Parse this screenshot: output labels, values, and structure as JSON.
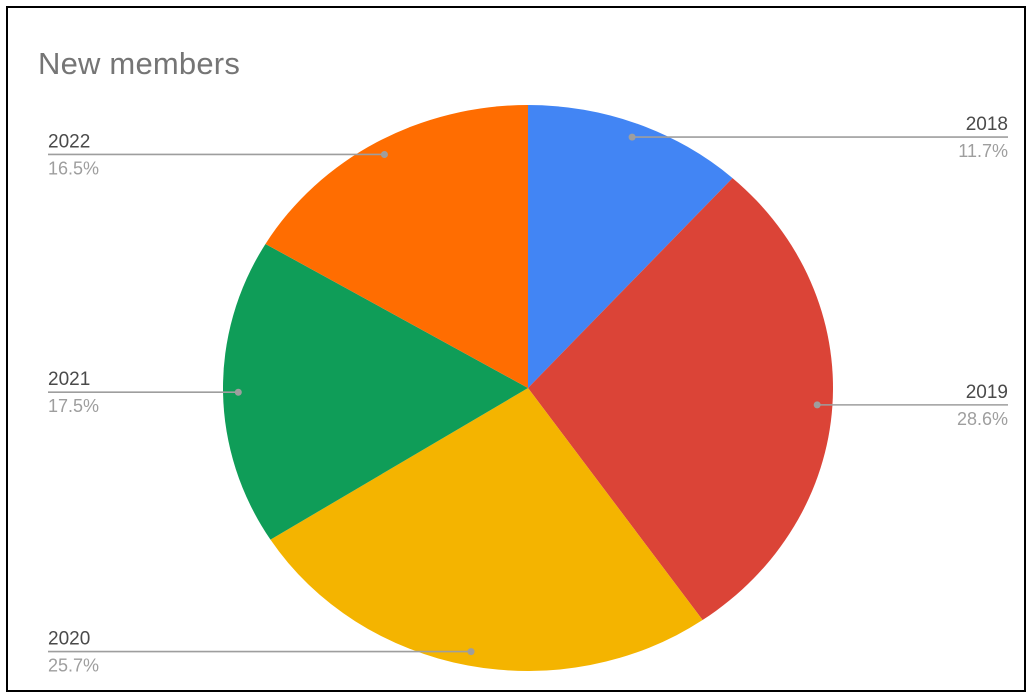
{
  "chart_data": {
    "type": "pie",
    "title": "New members",
    "slices": [
      {
        "label": "2018",
        "percent_label": "11.7%",
        "value": 11.7,
        "color": "#4285f4",
        "side": "right"
      },
      {
        "label": "2019",
        "percent_label": "28.6%",
        "value": 28.6,
        "color": "#db4437",
        "side": "right"
      },
      {
        "label": "2020",
        "percent_label": "25.7%",
        "value": 25.7,
        "color": "#f4b400",
        "side": "left"
      },
      {
        "label": "2021",
        "percent_label": "17.5%",
        "value": 17.5,
        "color": "#0f9d58",
        "side": "left"
      },
      {
        "label": "2022",
        "percent_label": "16.5%",
        "value": 16.5,
        "color": "#ff6d01",
        "side": "left"
      }
    ],
    "start_angle": "12 o'clock",
    "direction": "clockwise",
    "legend": "none",
    "label_style": "leader lines with category and percentage"
  }
}
